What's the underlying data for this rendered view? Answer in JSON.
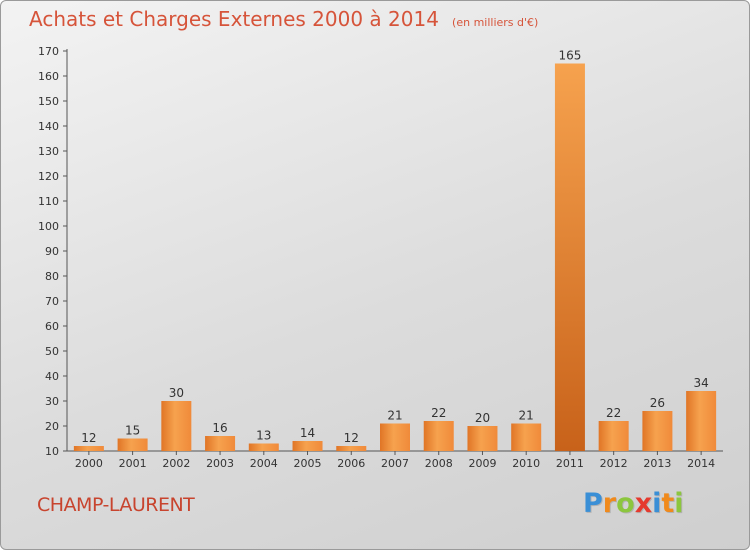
{
  "chart_data": {
    "type": "bar",
    "title": "Achats et Charges Externes 2000 à 2014",
    "unit_label": "(en milliers d'€)",
    "categories": [
      "2000",
      "2001",
      "2002",
      "2003",
      "2004",
      "2005",
      "2006",
      "2007",
      "2008",
      "2009",
      "2010",
      "2011",
      "2012",
      "2013",
      "2014"
    ],
    "values": [
      12,
      15,
      30,
      16,
      13,
      14,
      12,
      21,
      22,
      20,
      21,
      165,
      22,
      26,
      34
    ],
    "ylim": [
      10,
      170
    ],
    "yticks": [
      10,
      20,
      30,
      40,
      50,
      60,
      70,
      80,
      90,
      100,
      110,
      120,
      130,
      140,
      150,
      160,
      170
    ],
    "grid": false,
    "bar_color": "#f0923a",
    "bar_color_dark": "#c8621a"
  },
  "commune": "CHAMP-LAURENT",
  "brand": {
    "letters": [
      "P",
      "r",
      "o",
      "x",
      "i",
      "t",
      "i"
    ],
    "colors": [
      "#3a8fd6",
      "#f08a1c",
      "#8cc63e",
      "#e53a2e",
      "#3a8fd6",
      "#f08a1c",
      "#8cc63e"
    ]
  }
}
